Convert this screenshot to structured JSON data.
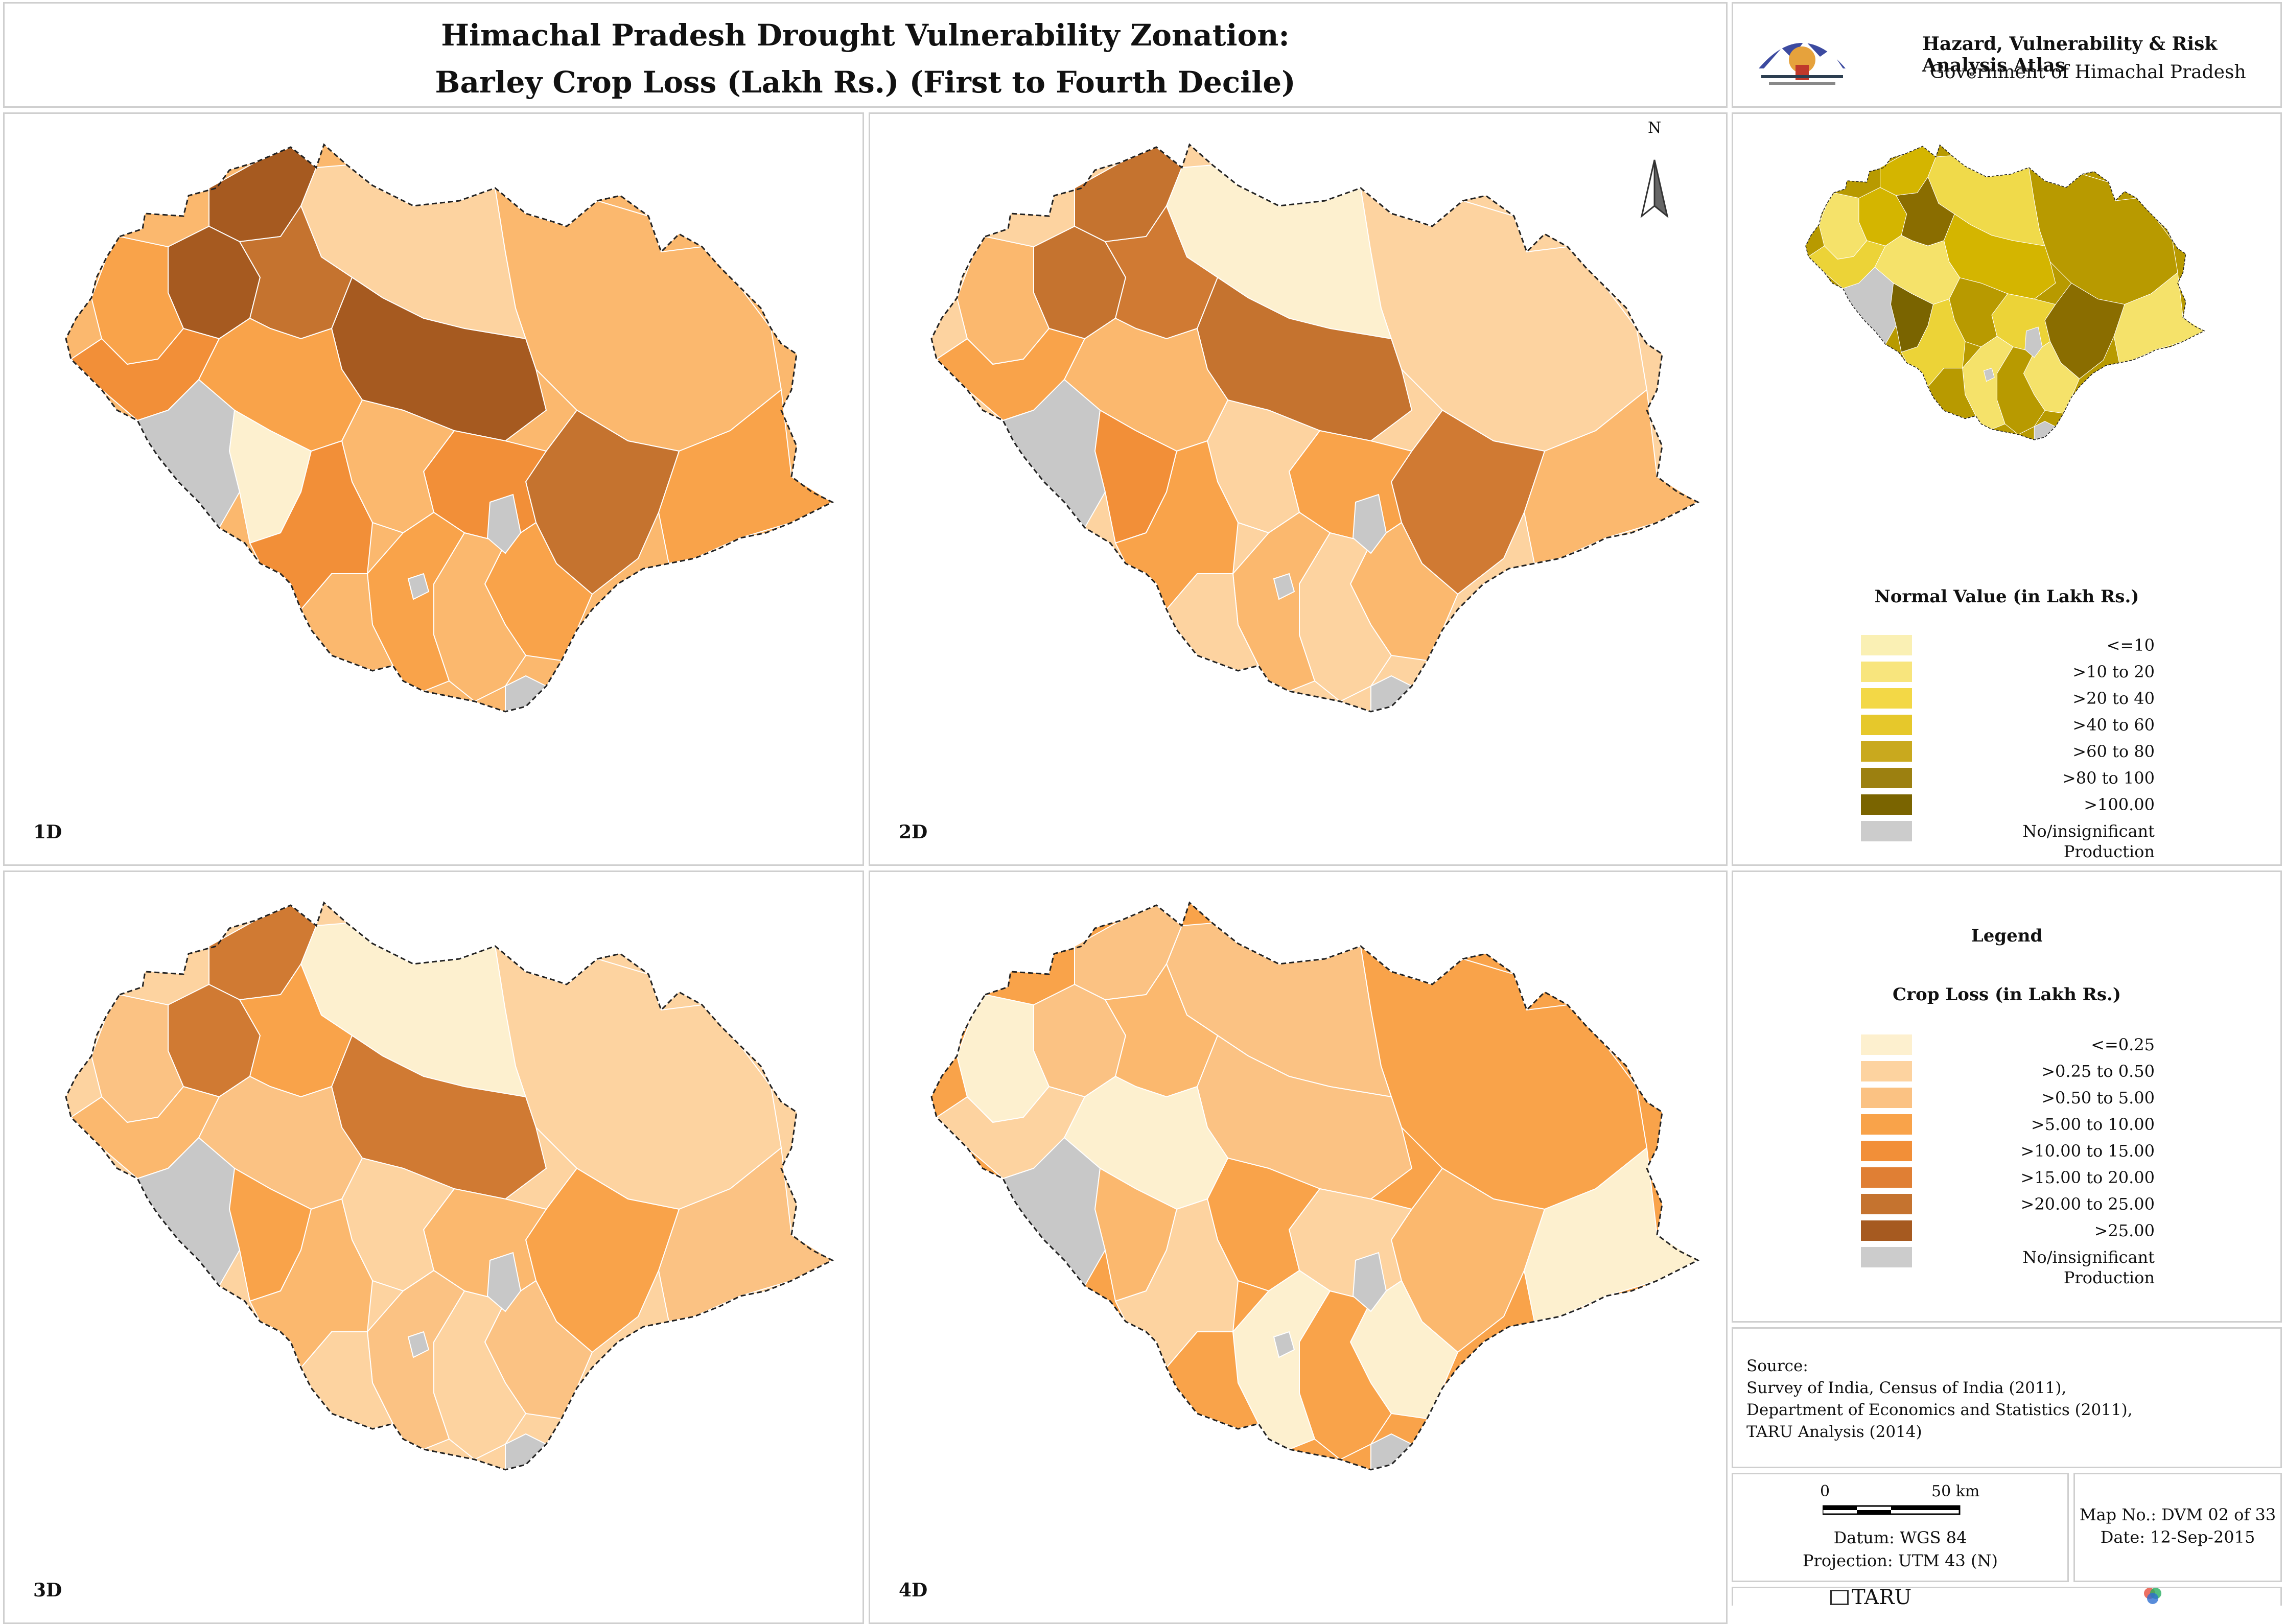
{
  "title_line1": "Himachal Pradesh Drought Vulnerability Zonation:",
  "title_line2": "Barley Crop Loss (Lakh Rs.) (First to Fourth Decile)",
  "atlas": {
    "title": "Hazard, Vulnerability & Risk Analysis Atlas",
    "subtitle": "Government of Himachal Pradesh"
  },
  "north_label": "N",
  "panels": [
    {
      "label": "1D",
      "fills": [
        "#a65a20",
        "#c5732f",
        "#f28f38",
        "#f9a34a",
        "#fbb86e",
        "#fdd3a0",
        "#fdf0cf",
        "#c8c8c8"
      ]
    },
    {
      "label": "2D",
      "fills": [
        "#c5732f",
        "#d07a33",
        "#f9a34a",
        "#fbb86e",
        "#fdd3a0",
        "#fdf0cf",
        "#f28f38",
        "#c8c8c8"
      ]
    },
    {
      "label": "3D",
      "fills": [
        "#d07a33",
        "#f9a34a",
        "#fbb86e",
        "#fbc283",
        "#fdd3a0",
        "#fdf0cf",
        "#f9a34a",
        "#c8c8c8"
      ]
    },
    {
      "label": "4D",
      "fills": [
        "#fbc283",
        "#fbb86e",
        "#fdd3a0",
        "#fdf0cf",
        "#f9a34a",
        "#fbc283",
        "#fbb86e",
        "#c8c8c8"
      ]
    }
  ],
  "normal_map_fills": [
    "#d4b500",
    "#8a6d00",
    "#ecd337",
    "#f5e26a",
    "#b89a00",
    "#f0da4a",
    "#7a6400",
    "#c8c8c8"
  ],
  "normal_legend": {
    "title": "Normal Value (in Lakh Rs.)",
    "items": [
      {
        "label": "<=10",
        "color": "#faf0b4"
      },
      {
        "label": ">10 to 20",
        "color": "#f8e57d"
      },
      {
        "label": ">20 to 40",
        "color": "#f3d846"
      },
      {
        "label": ">40 to 60",
        "color": "#e6c82b"
      },
      {
        "label": ">60 to 80",
        "color": "#c9a91e"
      },
      {
        "label": ">80 to 100",
        "color": "#9c8010"
      },
      {
        "label": ">100.00",
        "color": "#7a6400"
      },
      {
        "label": "No/insignificant Production",
        "color": "#cccccc"
      }
    ]
  },
  "crop_legend": {
    "heading": "Legend",
    "title": "Crop Loss (in Lakh Rs.)",
    "items": [
      {
        "label": "<=0.25",
        "color": "#fdf0cf"
      },
      {
        "label": ">0.25 to 0.50",
        "color": "#fdd3a0"
      },
      {
        "label": ">0.50 to 5.00",
        "color": "#fbc283"
      },
      {
        "label": ">5.00 to 10.00",
        "color": "#f9a34a"
      },
      {
        "label": ">10.00 to 15.00",
        "color": "#f28f38"
      },
      {
        "label": ">15.00 to 20.00",
        "color": "#e07f34"
      },
      {
        "label": ">20.00 to 25.00",
        "color": "#c5732f"
      },
      {
        "label": ">25.00",
        "color": "#a65a20"
      },
      {
        "label": "No/insignificant Production",
        "color": "#cccccc"
      }
    ]
  },
  "source": {
    "heading": "Source:",
    "lines": [
      "Survey of India, Census of India (2011),",
      "Department of Economics and Statistics (2011),",
      "TARU Analysis (2014)"
    ]
  },
  "scale": {
    "zero": "0",
    "end": "50 km",
    "datum": "Datum: WGS 84",
    "projection": "Projection: UTM 43 (N)"
  },
  "map_info": {
    "number": "Map No.: DVM 02 of 33",
    "date": "Date: 12-Sep-2015"
  },
  "footer": {
    "brand": "TARU"
  }
}
